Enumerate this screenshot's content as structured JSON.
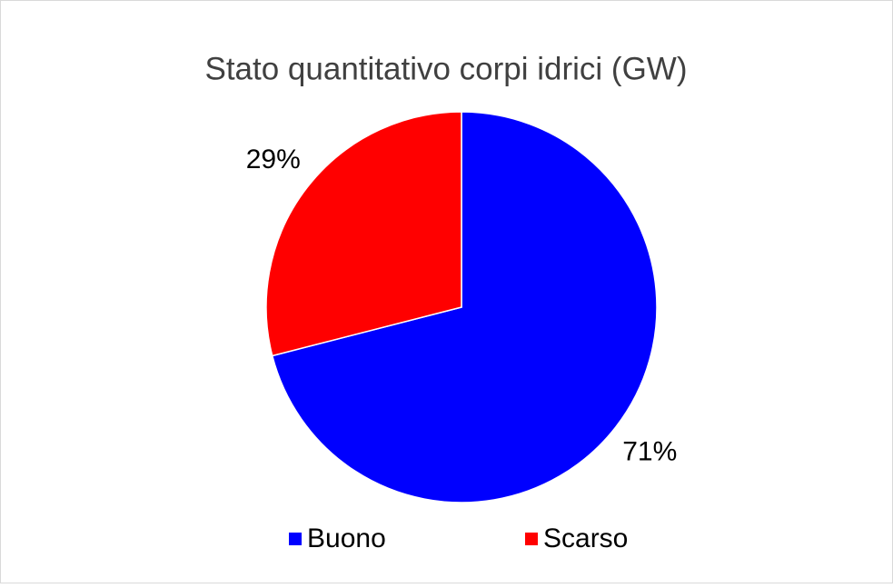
{
  "chart_data": {
    "type": "pie",
    "title": "Stato quantitativo corpi idrici (GW)",
    "categories": [
      "Buono",
      "Scarso"
    ],
    "values": [
      71,
      29
    ],
    "value_labels": [
      "71%",
      "29%"
    ],
    "colors": [
      "#0000ff",
      "#ff0000"
    ],
    "legend": "bottom"
  }
}
